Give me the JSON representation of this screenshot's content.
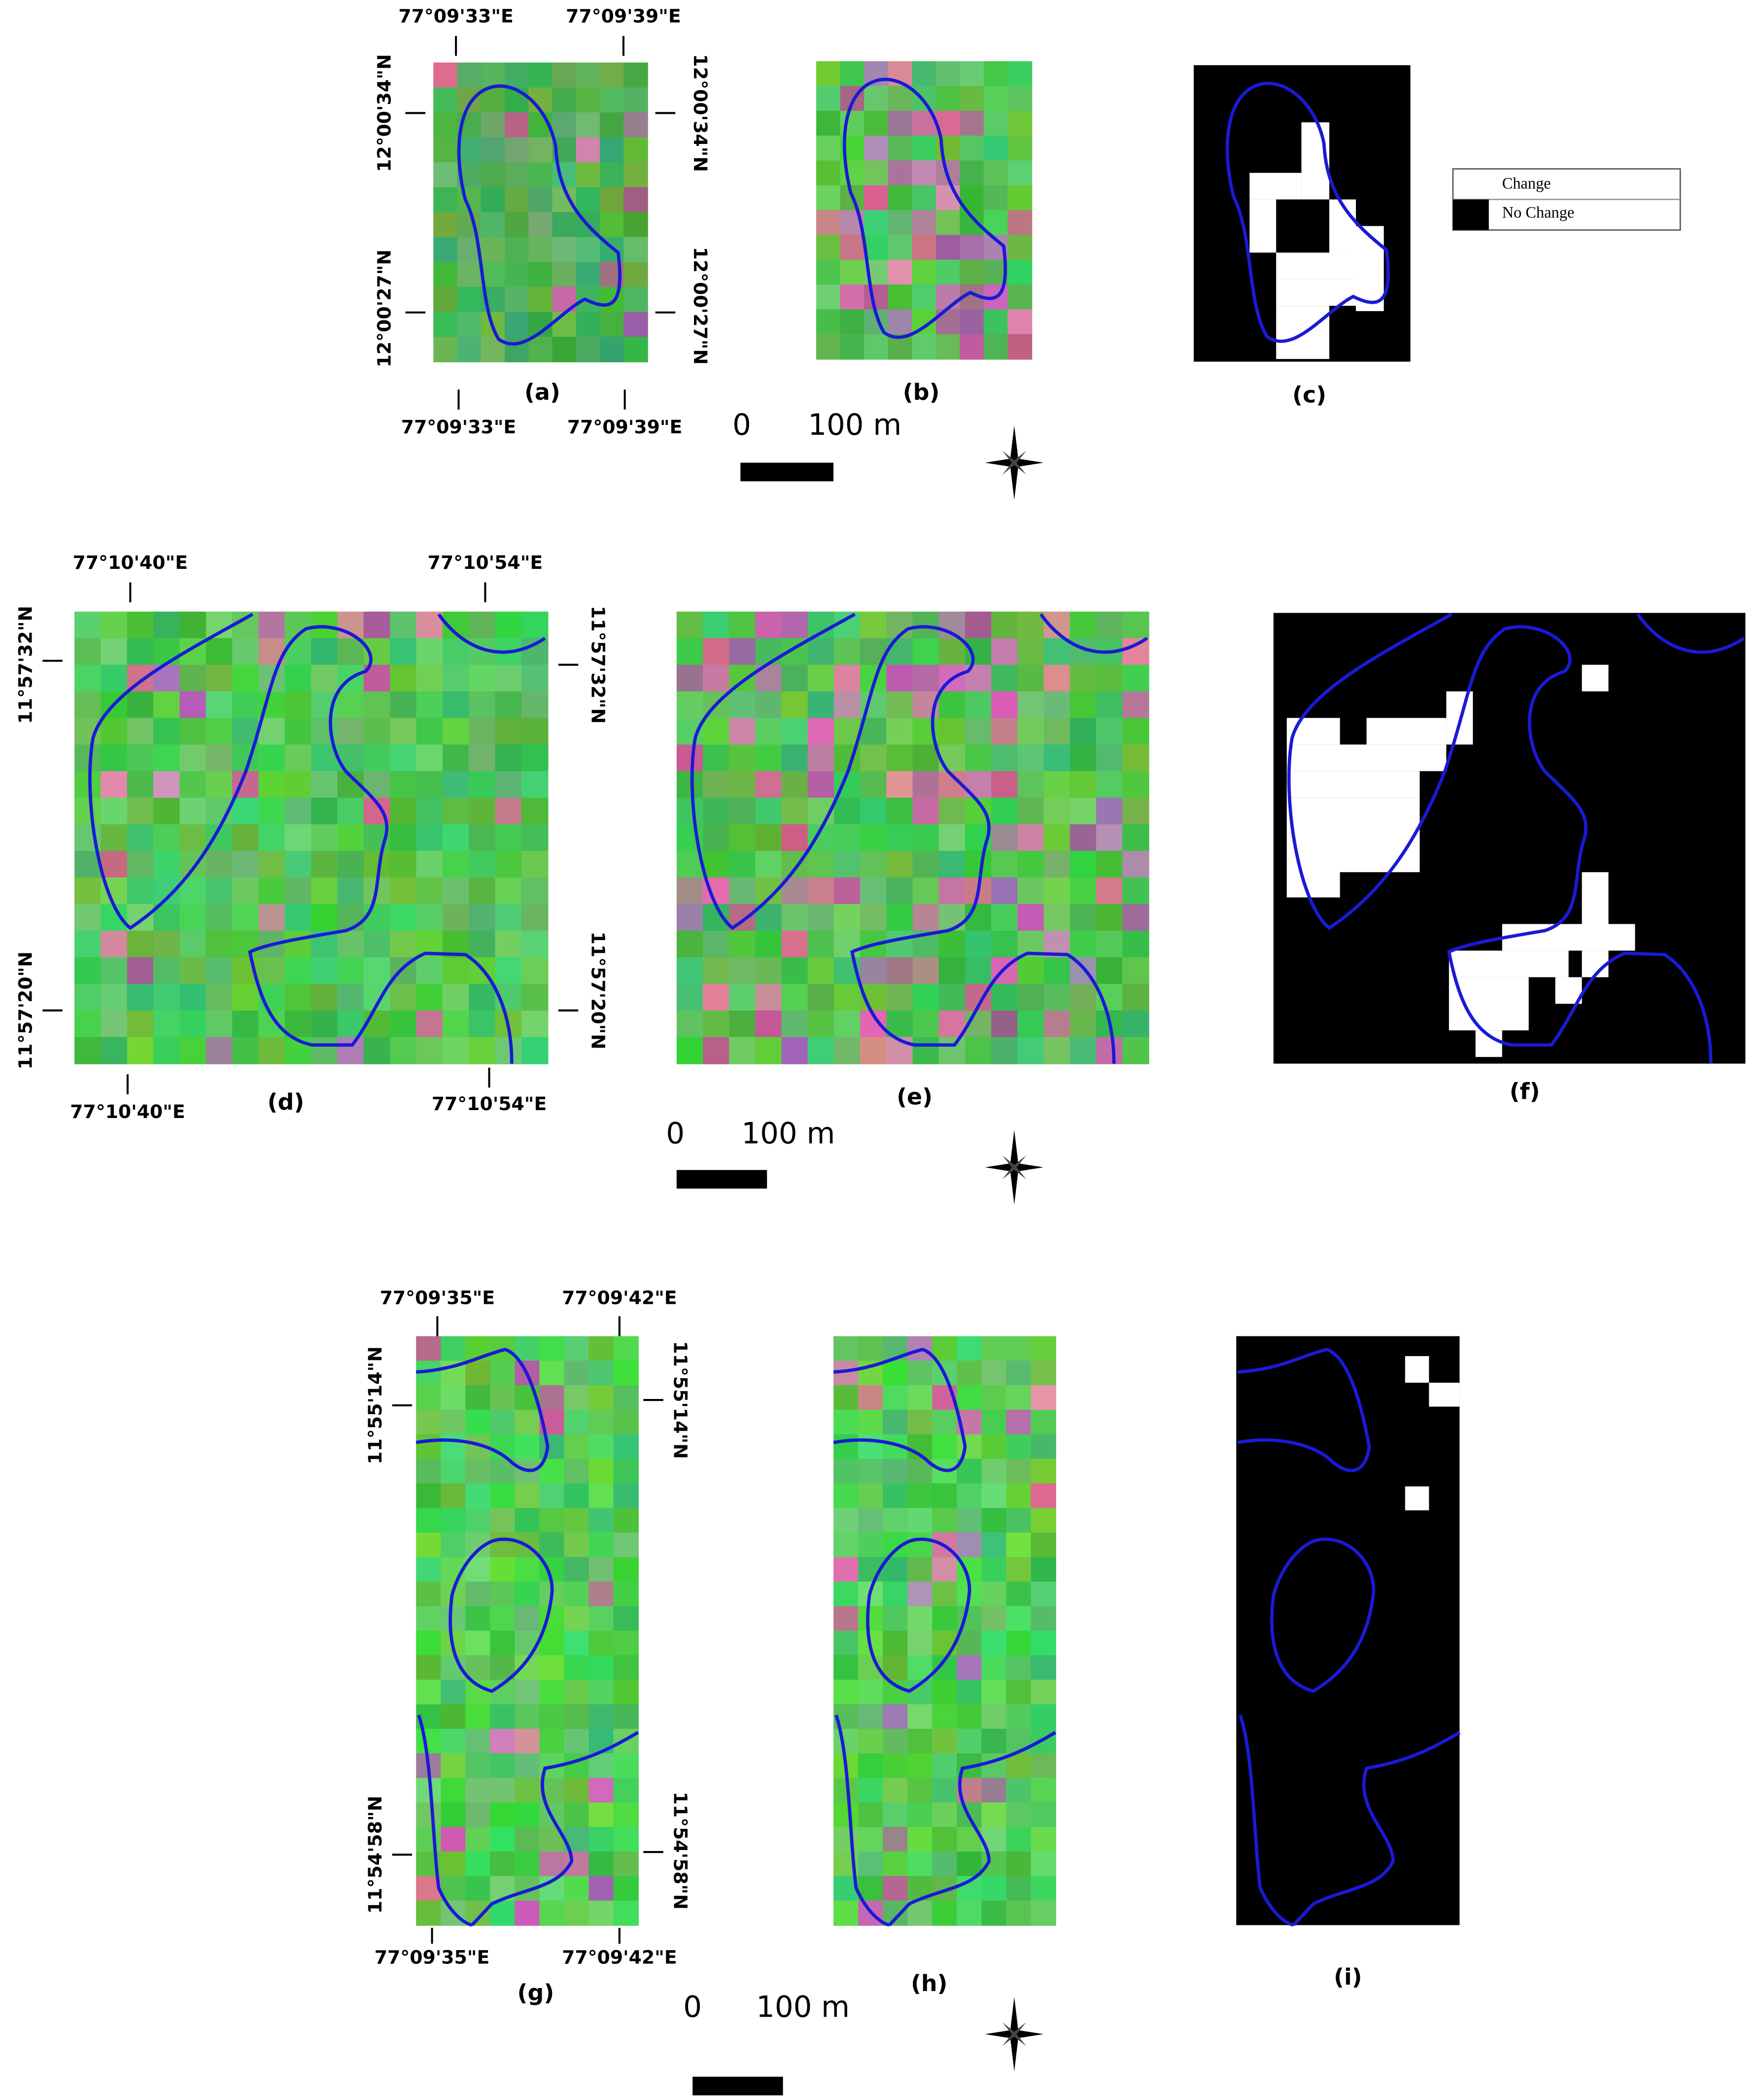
{
  "legend": {
    "items": [
      "Change",
      "No Change"
    ]
  },
  "rows": [
    {
      "panels": [
        "(a)",
        "(b)",
        "(c)"
      ],
      "top_lon": [
        "77°09'33\"E",
        "77°09'39\"E"
      ],
      "bottom_lon": [
        "77°09'33\"E",
        "77°09'39\"E"
      ],
      "left_lat": [
        "12°00'34\"N",
        "12°00'27\"N"
      ],
      "right_lat": [
        "12°00'34\"N",
        "12°00'27\"N"
      ],
      "scale": [
        "0",
        "100 m"
      ]
    },
    {
      "panels": [
        "(d)",
        "(e)",
        "(f)"
      ],
      "top_lon": [
        "77°10'40\"E",
        "77°10'54\"E"
      ],
      "bottom_lon": [
        "77°10'40\"E",
        "77°10'54\"E"
      ],
      "left_lat": [
        "11°57'32\"N",
        "11°57'20\"N"
      ],
      "right_lat": [
        "11°57'32\"N",
        "11°57'20\"N"
      ],
      "scale": [
        "0",
        "100 m"
      ]
    },
    {
      "panels": [
        "(g)",
        "(h)",
        "(i)"
      ],
      "top_lon": [
        "77°09'35\"E",
        "77°09'42\"E"
      ],
      "bottom_lon": [
        "77°09'35\"E",
        "77°09'42\"E"
      ],
      "left_lat": [
        "11°55'14\"N",
        "11°54'58\"N"
      ],
      "right_lat": [
        "11°55'14\"N",
        "11°54'58\"N"
      ],
      "scale": [
        "0",
        "100 m"
      ]
    }
  ]
}
